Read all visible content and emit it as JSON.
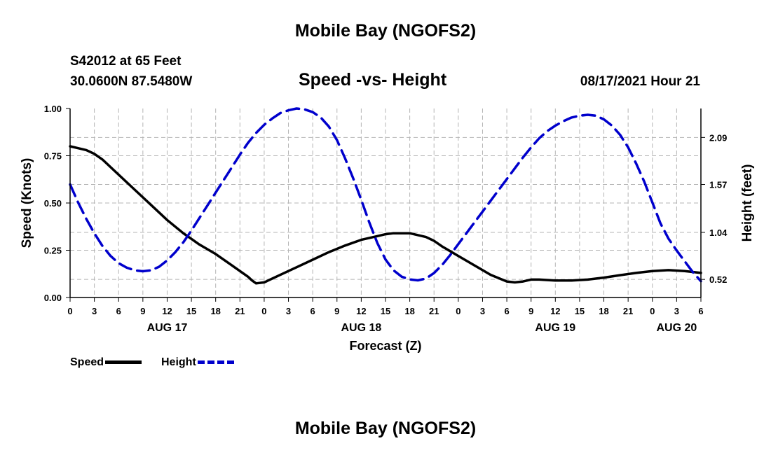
{
  "header": {
    "title": "Mobile Bay (NGOFS2)",
    "station": "S42012 at 65 Feet",
    "coordinates": "30.0600N  87.5480W",
    "chart_title": "Speed -vs- Height",
    "date": "08/17/2021 Hour 21"
  },
  "footer": {
    "title": "Mobile Bay (NGOFS2)"
  },
  "legend": {
    "speed_label": "Speed",
    "height_label": "Height"
  },
  "colors": {
    "speed": "#000000",
    "height": "#0000cc",
    "grid": "#b4b4b4"
  },
  "chart_data": {
    "type": "line",
    "title": "Speed -vs- Height",
    "xlabel": "Forecast (Z)",
    "ylabel": "Speed (Knots)",
    "y2label": "Height (feet)",
    "x_unit": "hours from 00Z Aug 17",
    "xlim": [
      0,
      78
    ],
    "ylim": [
      0,
      1
    ],
    "y2lim": [
      0.32,
      2.41
    ],
    "x_ticks": [
      0,
      3,
      6,
      9,
      12,
      15,
      18,
      21,
      24,
      27,
      30,
      33,
      36,
      39,
      42,
      45,
      48,
      51,
      54,
      57,
      60,
      63,
      66,
      69,
      72,
      75,
      78
    ],
    "x_tick_labels": [
      "0",
      "3",
      "6",
      "9",
      "12",
      "15",
      "18",
      "21",
      "0",
      "3",
      "6",
      "9",
      "12",
      "15",
      "18",
      "21",
      "0",
      "3",
      "6",
      "9",
      "12",
      "15",
      "18",
      "21",
      "0",
      "3",
      "6"
    ],
    "day_labels": [
      {
        "x": 12,
        "label": "AUG 17"
      },
      {
        "x": 36,
        "label": "AUG 18"
      },
      {
        "x": 60,
        "label": "AUG 19"
      },
      {
        "x": 75,
        "label": "AUG 20"
      }
    ],
    "y_ticks": [
      0,
      0.25,
      0.5,
      0.75,
      1.0
    ],
    "y_tick_labels": [
      "0.00",
      "0.25",
      "0.50",
      "0.75",
      "1.00"
    ],
    "y2_ticks": [
      0.52,
      1.04,
      1.57,
      2.09
    ],
    "y2_tick_labels": [
      "0.52",
      "1.04",
      "1.57",
      "2.09"
    ],
    "series": [
      {
        "name": "Speed",
        "axis": "left",
        "style": "solid",
        "x": [
          0,
          1,
          2,
          3,
          4,
          6,
          8,
          9,
          10,
          12,
          14,
          15,
          16,
          18,
          20,
          21,
          22,
          22.5,
          23,
          24,
          26,
          28,
          30,
          32,
          34,
          36,
          38,
          39,
          40,
          42,
          44,
          45,
          46,
          48,
          50,
          52,
          54,
          55,
          56,
          57,
          58,
          60,
          62,
          64,
          66,
          68,
          70,
          72,
          74,
          76,
          78
        ],
        "values": [
          0.8,
          0.79,
          0.78,
          0.76,
          0.73,
          0.65,
          0.57,
          0.53,
          0.49,
          0.41,
          0.34,
          0.31,
          0.28,
          0.23,
          0.17,
          0.14,
          0.11,
          0.09,
          0.075,
          0.08,
          0.12,
          0.16,
          0.2,
          0.24,
          0.275,
          0.305,
          0.325,
          0.335,
          0.34,
          0.34,
          0.32,
          0.3,
          0.27,
          0.22,
          0.17,
          0.12,
          0.085,
          0.08,
          0.085,
          0.095,
          0.095,
          0.09,
          0.09,
          0.095,
          0.105,
          0.118,
          0.13,
          0.14,
          0.145,
          0.14,
          0.13
        ]
      },
      {
        "name": "Height",
        "axis": "right",
        "style": "dashed",
        "x": [
          0,
          1,
          2,
          3,
          4,
          5,
          6,
          7,
          8,
          9,
          10,
          11,
          12,
          13,
          14,
          15,
          16,
          17,
          18,
          19,
          20,
          21,
          22,
          23,
          24,
          25,
          26,
          27,
          28,
          29,
          30,
          31,
          32,
          33,
          34,
          35,
          36,
          37,
          38,
          39,
          40,
          41,
          42,
          43,
          44,
          45,
          46,
          47,
          48,
          49,
          50,
          51,
          52,
          53,
          54,
          55,
          56,
          57,
          58,
          59,
          60,
          61,
          62,
          63,
          64,
          65,
          66,
          67,
          68,
          69,
          70,
          71,
          72,
          73,
          74,
          75,
          76,
          77,
          78
        ],
        "values": [
          1.57,
          1.37,
          1.19,
          1.03,
          0.89,
          0.78,
          0.7,
          0.65,
          0.62,
          0.61,
          0.62,
          0.66,
          0.73,
          0.82,
          0.93,
          1.06,
          1.2,
          1.34,
          1.48,
          1.62,
          1.76,
          1.9,
          2.03,
          2.14,
          2.23,
          2.3,
          2.36,
          2.39,
          2.41,
          2.4,
          2.37,
          2.31,
          2.21,
          2.06,
          1.86,
          1.64,
          1.4,
          1.15,
          0.92,
          0.74,
          0.62,
          0.55,
          0.52,
          0.51,
          0.53,
          0.59,
          0.68,
          0.79,
          0.91,
          1.03,
          1.15,
          1.27,
          1.39,
          1.51,
          1.63,
          1.75,
          1.87,
          1.98,
          2.08,
          2.16,
          2.22,
          2.27,
          2.31,
          2.33,
          2.34,
          2.33,
          2.29,
          2.22,
          2.12,
          1.98,
          1.8,
          1.6,
          1.37,
          1.14,
          0.97,
          0.84,
          0.72,
          0.6,
          0.5
        ]
      }
    ]
  }
}
